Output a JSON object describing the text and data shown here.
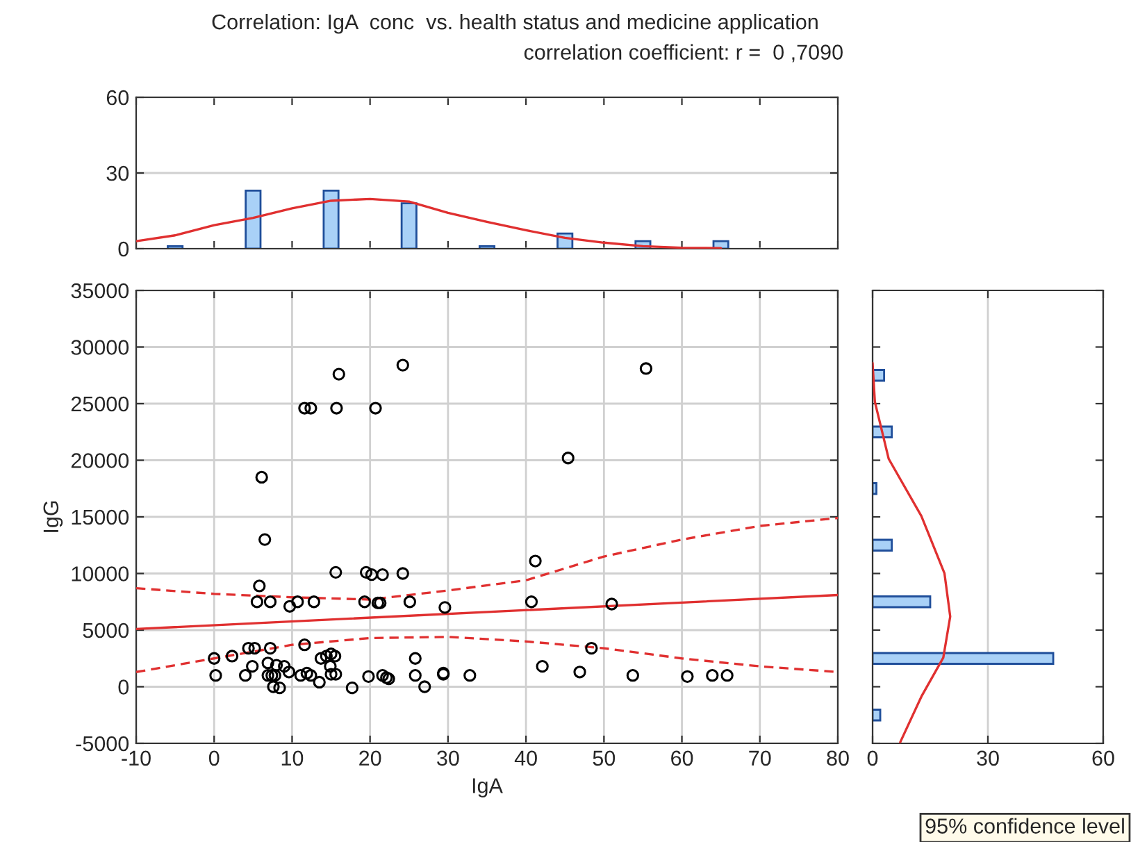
{
  "chart_data": [
    {
      "type": "bar",
      "title": "Correlation: IgA  conc  vs. health status and medicine application",
      "subtitle": "correlation coefficient: r =  0 ,7090",
      "xlim": [
        -10,
        80
      ],
      "xticks": [
        {
          "value": -10,
          "label": null
        },
        {
          "value": 0,
          "label": null
        },
        {
          "value": 10,
          "label": null
        },
        {
          "value": 20,
          "label": null
        },
        {
          "value": 30,
          "label": null
        },
        {
          "value": 40,
          "label": null
        },
        {
          "value": 50,
          "label": null
        },
        {
          "value": 60,
          "label": null
        },
        {
          "value": 70,
          "label": null
        },
        {
          "value": 80,
          "label": null
        }
      ],
      "ylim": [
        0,
        60
      ],
      "yticks": [
        0,
        30,
        60
      ],
      "tick_labels": "y",
      "grid": "y",
      "series": [
        {
          "color": "#a9d1f7",
          "x": [
            -5,
            5,
            15,
            25,
            35,
            45,
            55,
            65
          ],
          "values": [
            1,
            23,
            23,
            18,
            1,
            6,
            3,
            3
          ]
        },
        {
          "type": "line",
          "color": "#e03030",
          "line_style": "solid",
          "x": [
            -10,
            -5,
            0,
            5,
            10,
            15,
            20,
            25,
            30,
            35,
            40,
            45,
            50,
            55,
            60,
            65
          ],
          "values": [
            3,
            5.3,
            9.3,
            12.2,
            16,
            19,
            19.7,
            18.7,
            14.2,
            10.6,
            7.3,
            4.3,
            2.4,
            1,
            0.4,
            0.2
          ]
        }
      ]
    },
    {
      "type": "scatter",
      "xlabel": "IgA",
      "ylabel": "IgG",
      "xlim": [
        -10,
        80
      ],
      "xticks": [
        -10,
        0,
        10,
        20,
        30,
        40,
        50,
        60,
        70,
        80
      ],
      "ylim": [
        -5000,
        35000
      ],
      "yticks": [
        -5000,
        0,
        5000,
        10000,
        15000,
        20000,
        25000,
        30000,
        35000
      ],
      "grid": true,
      "annotations": [
        "95% confidence level"
      ],
      "series": [
        {
          "color": "#000000",
          "marker": "circle",
          "x": [
            24.2,
            16.0,
            11.6,
            12.4,
            15.7,
            20.7,
            6.1,
            6.5,
            5.8,
            5.5,
            7.2,
            9.7,
            10.7,
            12.8,
            15.6,
            19.3,
            19.5,
            20.2,
            21.6,
            21.0,
            21.3,
            24.2,
            25.1,
            29.6,
            0,
            0.2,
            2.3,
            4.0,
            4.4,
            5.2,
            4.9,
            7.2,
            6.9,
            6.9,
            7.4,
            7.8,
            8.0,
            7.6,
            8.4,
            9.0,
            9.6,
            11.1,
            11.6,
            11.9,
            12.4,
            13.5,
            13.7,
            14.4,
            15.0,
            15.5,
            14.9,
            15.0,
            15.6,
            17.7,
            19.8,
            21.6,
            22.1,
            22.4,
            25.8,
            25.8,
            27.0,
            29.4,
            29.4,
            32.8,
            55.4,
            45.4,
            41.2,
            40.7,
            51.0,
            48.4,
            42.1,
            46.9,
            53.7,
            60.7,
            63.9,
            65.8
          ],
          "values": [
            28400,
            27600,
            24600,
            24600,
            24600,
            24600,
            18500,
            13000,
            8900,
            7500,
            7500,
            7100,
            7500,
            7500,
            10100,
            7500,
            10100,
            9900,
            9900,
            7400,
            7400,
            10000,
            7500,
            7000,
            2500,
            1000,
            2700,
            1000,
            3400,
            3400,
            1800,
            3400,
            2100,
            1000,
            1000,
            1000,
            1900,
            0,
            -100,
            1800,
            1300,
            1000,
            3700,
            1200,
            1000,
            400,
            2500,
            2700,
            2900,
            2700,
            1800,
            1100,
            1100,
            -100,
            900,
            1000,
            800,
            700,
            2500,
            1000,
            0,
            1100,
            1200,
            1000,
            28100,
            20200,
            11100,
            7500,
            7300,
            3400,
            1800,
            1300,
            1000,
            900,
            1000,
            1000
          ]
        },
        {
          "type": "line",
          "color": "#e03030",
          "line_style": "solid",
          "x": [
            -10,
            80
          ],
          "values": [
            5100,
            8100
          ]
        },
        {
          "type": "line",
          "color": "#e03030",
          "line_style": "dashed",
          "x": [
            -10,
            0,
            10,
            20,
            30,
            40,
            50,
            60,
            70,
            80
          ],
          "values": [
            8700,
            8200,
            7900,
            7700,
            8500,
            9400,
            11500,
            13000,
            14200,
            14900
          ]
        },
        {
          "type": "line",
          "color": "#e03030",
          "line_style": "dashed",
          "x": [
            -10,
            0,
            10,
            20,
            30,
            40,
            50,
            60,
            70,
            80
          ],
          "values": [
            1300,
            2500,
            3700,
            4300,
            4400,
            4000,
            3400,
            2500,
            1800,
            1300
          ]
        }
      ]
    },
    {
      "type": "bar",
      "orientation": "horizontal",
      "xlim": [
        0,
        60
      ],
      "xticks": [
        0,
        30,
        60
      ],
      "ylim": [
        -5000,
        35000
      ],
      "yticks": [
        {
          "value": -5000,
          "label": null
        },
        {
          "value": 0,
          "label": null
        },
        {
          "value": 5000,
          "label": null
        },
        {
          "value": 10000,
          "label": null
        },
        {
          "value": 15000,
          "label": null
        },
        {
          "value": 20000,
          "label": null
        },
        {
          "value": 25000,
          "label": null
        },
        {
          "value": 30000,
          "label": null
        },
        {
          "value": 35000,
          "label": null
        }
      ],
      "tick_labels": "x",
      "grid": "x",
      "series": [
        {
          "color": "#a9d1f7",
          "x": [
            -2500,
            2500,
            7500,
            12500,
            17500,
            22500,
            27500
          ],
          "values": [
            2,
            47,
            15,
            5,
            1,
            5,
            3
          ]
        },
        {
          "type": "line",
          "color": "#e03030",
          "line_style": "solid",
          "x": [
            -4900,
            -870,
            2570,
            6200,
            10030,
            15070,
            20120,
            25160,
            28600
          ],
          "values": [
            7.2,
            12.7,
            18.4,
            20.2,
            18.7,
            12.7,
            4.2,
            0.6,
            0
          ]
        }
      ]
    }
  ]
}
